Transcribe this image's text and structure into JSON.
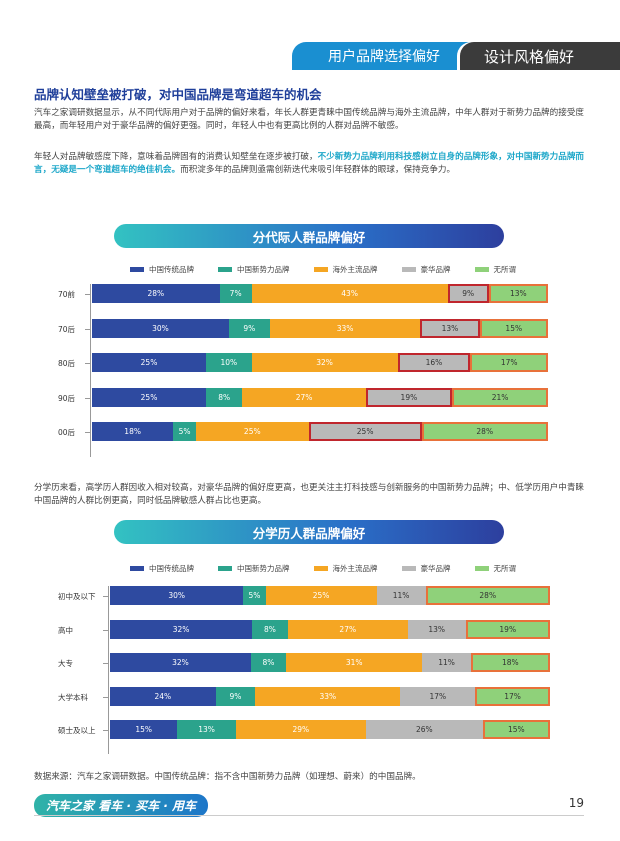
{
  "tabs": {
    "left": "用户品牌选择偏好",
    "right": "设计风格偏好"
  },
  "heading": "品牌认知壁垒被打破，对中国品牌是弯道超车的机会",
  "para1": "汽车之家调研数据显示，从不同代际用户对于品牌的偏好来看，年长人群更青睐中国传统品牌与海外主流品牌，中年人群对于新势力品牌的接受度最高，而年轻用户对于豪华品牌的偏好更强。同时，年轻人中也有更高比例的人群对品牌不敏感。",
  "para2_a": "年轻人对品牌敏感度下降，意味着品牌固有的消费认知壁垒在逐步被打破，",
  "para2_hl": "不少新势力品牌利用科技感树立自身的品牌形象，对中国新势力品牌而言，无疑是一个弯道超车的绝佳机会。",
  "para2_b": "而积淀多年的品牌则亟需创新迭代来吸引年轻群体的眼球，保持竞争力。",
  "para3": "分学历来看，高学历人群因收入相对较高，对豪华品牌的偏好度更高，也更关注主打科技感与创新服务的中国新势力品牌；中、低学历用户中青睐中国品牌的人群比例更高，同时低品牌敏感人群占比也更高。",
  "source": "数据来源：汽车之家调研数据。中国传统品牌：指不含中国新势力品牌（如理想、蔚来）的中国品牌。",
  "footer": {
    "brand": "汽车之家",
    "slogan": "看车 · 买车 · 用车",
    "page": "19"
  },
  "colors": {
    "traditional": "#2e4aa0",
    "new_force": "#2ba38c",
    "overseas": "#f5a623",
    "luxury": "#b9b9b9",
    "none": "#8fd17a",
    "highlight_red": "#c0262d",
    "highlight_orange": "#e8713a"
  },
  "chart_data": [
    {
      "type": "bar",
      "stacked": true,
      "orientation": "horizontal",
      "title": "分代际人群品牌偏好",
      "legend": [
        "中国传统品牌",
        "中国新势力品牌",
        "海外主流品牌",
        "豪华品牌",
        "无所谓"
      ],
      "categories": [
        "70前",
        "70后",
        "80后",
        "90后",
        "00后"
      ],
      "series": [
        {
          "name": "中国传统品牌",
          "values": [
            28,
            30,
            25,
            25,
            18
          ]
        },
        {
          "name": "中国新势力品牌",
          "values": [
            7,
            9,
            10,
            8,
            5
          ]
        },
        {
          "name": "海外主流品牌",
          "values": [
            43,
            33,
            32,
            27,
            25
          ]
        },
        {
          "name": "豪华品牌",
          "values": [
            9,
            13,
            16,
            19,
            25
          ]
        },
        {
          "name": "无所谓",
          "values": [
            13,
            15,
            17,
            21,
            28
          ]
        }
      ],
      "unit": "%"
    },
    {
      "type": "bar",
      "stacked": true,
      "orientation": "horizontal",
      "title": "分学历人群品牌偏好",
      "legend": [
        "中国传统品牌",
        "中国新势力品牌",
        "海外主流品牌",
        "豪华品牌",
        "无所谓"
      ],
      "categories": [
        "初中及以下",
        "高中",
        "大专",
        "大学本科",
        "硕士及以上"
      ],
      "series": [
        {
          "name": "中国传统品牌",
          "values": [
            30,
            32,
            32,
            24,
            15
          ]
        },
        {
          "name": "中国新势力品牌",
          "values": [
            5,
            8,
            8,
            9,
            13
          ]
        },
        {
          "name": "海外主流品牌",
          "values": [
            25,
            27,
            31,
            33,
            29
          ]
        },
        {
          "name": "豪华品牌",
          "values": [
            11,
            13,
            11,
            17,
            26
          ]
        },
        {
          "name": "无所谓",
          "values": [
            28,
            19,
            18,
            17,
            15
          ]
        }
      ],
      "unit": "%"
    }
  ]
}
